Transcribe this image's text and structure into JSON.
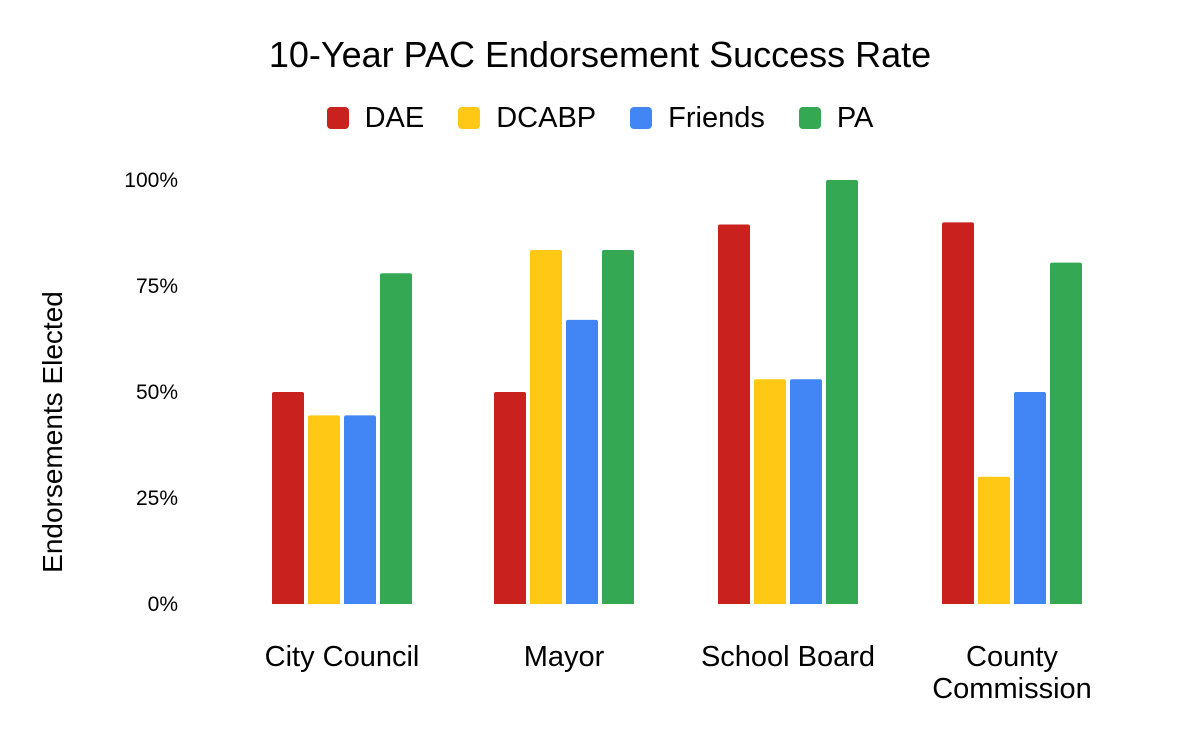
{
  "chart_data": {
    "type": "bar",
    "title": "10-Year PAC Endorsement Success Rate",
    "xlabel": "",
    "ylabel": "Endorsements Elected",
    "categories": [
      [
        "City Council"
      ],
      [
        "Mayor"
      ],
      [
        "School Board"
      ],
      [
        "County",
        "Commission"
      ]
    ],
    "series": [
      {
        "name": "DAE",
        "color": "#C9211E",
        "values": [
          50,
          50,
          89.5,
          90
        ]
      },
      {
        "name": "DCABP",
        "color": "#FFC814",
        "values": [
          44.5,
          83.5,
          53,
          30
        ]
      },
      {
        "name": "Friends",
        "color": "#4285F4",
        "values": [
          44.5,
          67,
          53,
          50
        ]
      },
      {
        "name": "PA",
        "color": "#34A853",
        "values": [
          78,
          83.5,
          100,
          80.5
        ]
      }
    ],
    "ylim": [
      0,
      100
    ],
    "yticks": [
      0,
      25,
      50,
      75,
      100
    ],
    "ytick_labels": [
      "0%",
      "25%",
      "50%",
      "75%",
      "100%"
    ],
    "grid": false,
    "legend_position": "top"
  }
}
